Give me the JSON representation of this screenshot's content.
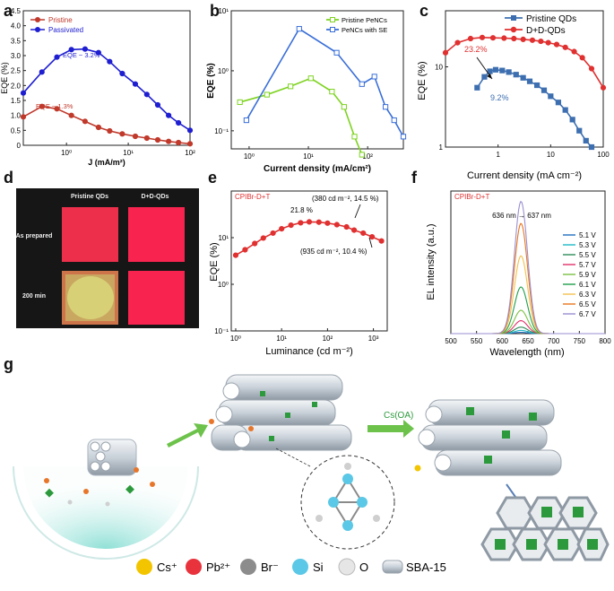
{
  "panels": {
    "a": {
      "letter": "a",
      "legend": [
        "Pristine",
        "Passivated"
      ],
      "colors": {
        "pristine": "#c0392b",
        "passivated": "#1f1fd1"
      },
      "annotations": [
        "EQE ~ 3.2%",
        "EQE ~ 1.3%"
      ],
      "xlabel": "J (mA/m²)",
      "ylabel": "EQE (%)",
      "yticks": [
        "0",
        "0.5",
        "1.0",
        "1.5",
        "2.0",
        "2.5",
        "3.0",
        "3.5",
        "4.0",
        "4.5"
      ],
      "xticks": [
        "10⁰",
        "10¹",
        "10²"
      ]
    },
    "b": {
      "letter": "b",
      "legend": [
        "Pristine PeNCs",
        "PeNCs with SE"
      ],
      "colors": {
        "pristine": "#7ed321",
        "se": "#3a6fd8"
      },
      "xlabel": "Current density (mA/cm²)",
      "ylabel": "EQE (%)",
      "yticks": [
        "10¹",
        "10⁰",
        "10⁻¹"
      ],
      "xticks": [
        "10⁰",
        "10¹",
        "10²"
      ]
    },
    "c": {
      "letter": "c",
      "legend": [
        "Pristine QDs",
        "D+D-QDs"
      ],
      "colors": {
        "pristine": "#3d6fb0",
        "dd": "#e03030"
      },
      "annotations": [
        "23.2%",
        "9.2%"
      ],
      "xlabel": "Current density (mA cm⁻²)",
      "ylabel": "EQE (%)",
      "yticks": [
        "10",
        "1"
      ],
      "xticks": [
        "1",
        "10",
        "100"
      ]
    },
    "d": {
      "letter": "d",
      "col_headers": [
        "Pristine QDs",
        "D+D-QDs"
      ],
      "row_headers": [
        "As prepared",
        "200 min"
      ]
    },
    "e": {
      "letter": "e",
      "sample": "CPIBr-D+T",
      "annotations": [
        "21.8 %",
        "(380 cd m⁻², 14.5 %)",
        "(935 cd m⁻², 10.4 %)"
      ],
      "xlabel": "Luminance (cd m⁻²)",
      "ylabel": "EQE (%)",
      "yticks": [
        "10¹",
        "10⁰",
        "10⁻¹"
      ],
      "xticks": [
        "10⁰",
        "10¹",
        "10²",
        "10³"
      ]
    },
    "f": {
      "letter": "f",
      "sample": "CPIBr-D+T",
      "annotation": "636 nm → 637 nm",
      "xlabel": "Wavelength (nm)",
      "ylabel": "EL intensity (a.u.)",
      "xticks": [
        "500",
        "550",
        "600",
        "650",
        "700",
        "750",
        "800"
      ]
    },
    "g": {
      "letter": "g",
      "reaction_label": "Cs(OA)",
      "legend": [
        "Cs⁺",
        "Pb²⁺",
        "Br⁻",
        "Si",
        "O",
        "SBA-15"
      ]
    }
  },
  "chart_data": [
    {
      "id": "a",
      "type": "line",
      "xscale": "log",
      "xlim": [
        0.2,
        100
      ],
      "ylim": [
        0,
        4.5
      ],
      "series": [
        {
          "name": "Pristine",
          "x": [
            0.2,
            0.4,
            0.7,
            1.2,
            2,
            3.3,
            5,
            8,
            13,
            20,
            30,
            45,
            65,
            100
          ],
          "y": [
            0.95,
            1.3,
            1.22,
            1.0,
            0.8,
            0.6,
            0.48,
            0.38,
            0.3,
            0.24,
            0.18,
            0.13,
            0.09,
            0.05
          ]
        },
        {
          "name": "Passivated",
          "x": [
            0.2,
            0.4,
            0.7,
            1.2,
            2,
            3.3,
            5,
            8,
            13,
            20,
            30,
            45,
            65,
            100
          ],
          "y": [
            1.75,
            2.45,
            2.95,
            3.2,
            3.22,
            3.1,
            2.8,
            2.4,
            2.05,
            1.7,
            1.35,
            1.0,
            0.75,
            0.5
          ]
        }
      ]
    },
    {
      "id": "b",
      "type": "line",
      "xscale": "log",
      "yscale": "log",
      "xlim": [
        0.5,
        400
      ],
      "ylim": [
        0.05,
        10
      ],
      "series": [
        {
          "name": "Pristine PeNCs",
          "x": [
            0.7,
            2,
            5,
            11,
            25,
            40,
            60,
            80
          ],
          "y": [
            0.3,
            0.4,
            0.55,
            0.75,
            0.45,
            0.25,
            0.08,
            0.04
          ]
        },
        {
          "name": "PeNCs with SE",
          "x": [
            0.9,
            7,
            30,
            80,
            130,
            200,
            280,
            400
          ],
          "y": [
            0.15,
            5,
            2,
            0.6,
            0.8,
            0.25,
            0.15,
            0.08
          ]
        }
      ]
    },
    {
      "id": "c",
      "type": "line",
      "xscale": "log",
      "yscale": "log",
      "xlim": [
        0.1,
        100
      ],
      "ylim": [
        1,
        50
      ],
      "series": [
        {
          "name": "Pristine QDs",
          "x": [
            0.4,
            0.55,
            0.7,
            0.9,
            1.2,
            1.6,
            2.2,
            3,
            4,
            5.5,
            7.5,
            10,
            14,
            19,
            26,
            35,
            47,
            60
          ],
          "y": [
            5.5,
            7.5,
            8.8,
            9.2,
            9.0,
            8.6,
            8.0,
            7.3,
            6.6,
            5.9,
            5.1,
            4.3,
            3.6,
            2.9,
            2.2,
            1.6,
            1.2,
            0.95
          ]
        },
        {
          "name": "D+D-QDs",
          "x": [
            0.1,
            0.17,
            0.3,
            0.5,
            0.8,
            1.3,
            2,
            3,
            4.5,
            6.5,
            9,
            13,
            19,
            28,
            40,
            60,
            100
          ],
          "y": [
            15,
            20,
            22.5,
            23.2,
            23,
            22.8,
            22.5,
            22,
            21.5,
            20.8,
            20,
            19,
            17.5,
            15.5,
            13,
            9.5,
            5.5
          ]
        }
      ]
    },
    {
      "id": "e",
      "type": "line",
      "xscale": "log",
      "yscale": "log",
      "xlim": [
        0.8,
        2000
      ],
      "ylim": [
        0.1,
        100
      ],
      "series": [
        {
          "name": "CPIBr-D+T",
          "x": [
            1,
            1.6,
            2.6,
            4,
            6.5,
            10,
            16,
            26,
            40,
            65,
            100,
            160,
            260,
            380,
            600,
            935,
            1500
          ],
          "y": [
            4.2,
            5.5,
            7.5,
            9.8,
            12.5,
            15.5,
            18.5,
            20.8,
            21.8,
            21.5,
            20.5,
            19,
            17,
            14.5,
            12.5,
            10.4,
            8.5
          ]
        }
      ]
    },
    {
      "id": "f",
      "type": "line",
      "xlim": [
        500,
        800
      ],
      "ylim": [
        0,
        11
      ],
      "peak_nm": 636.5,
      "fwhm_nm": 30,
      "series": [
        {
          "name": "5.1 V",
          "peak": 0.1,
          "color": "#1e6fbf"
        },
        {
          "name": "5.3 V",
          "peak": 0.25,
          "color": "#20b8c8"
        },
        {
          "name": "5.5 V",
          "peak": 0.5,
          "color": "#2e8b57"
        },
        {
          "name": "5.7 V",
          "peak": 1.0,
          "color": "#e0306a"
        },
        {
          "name": "5.9 V",
          "peak": 1.8,
          "color": "#7bc043"
        },
        {
          "name": "6.1 V",
          "peak": 3.6,
          "color": "#1f9e4a"
        },
        {
          "name": "6.3 V",
          "peak": 6.0,
          "color": "#f2c14e"
        },
        {
          "name": "6.5 V",
          "peak": 8.5,
          "color": "#e8761d"
        },
        {
          "name": "6.7 V",
          "peak": 10.2,
          "color": "#9a8fd1"
        }
      ]
    }
  ]
}
